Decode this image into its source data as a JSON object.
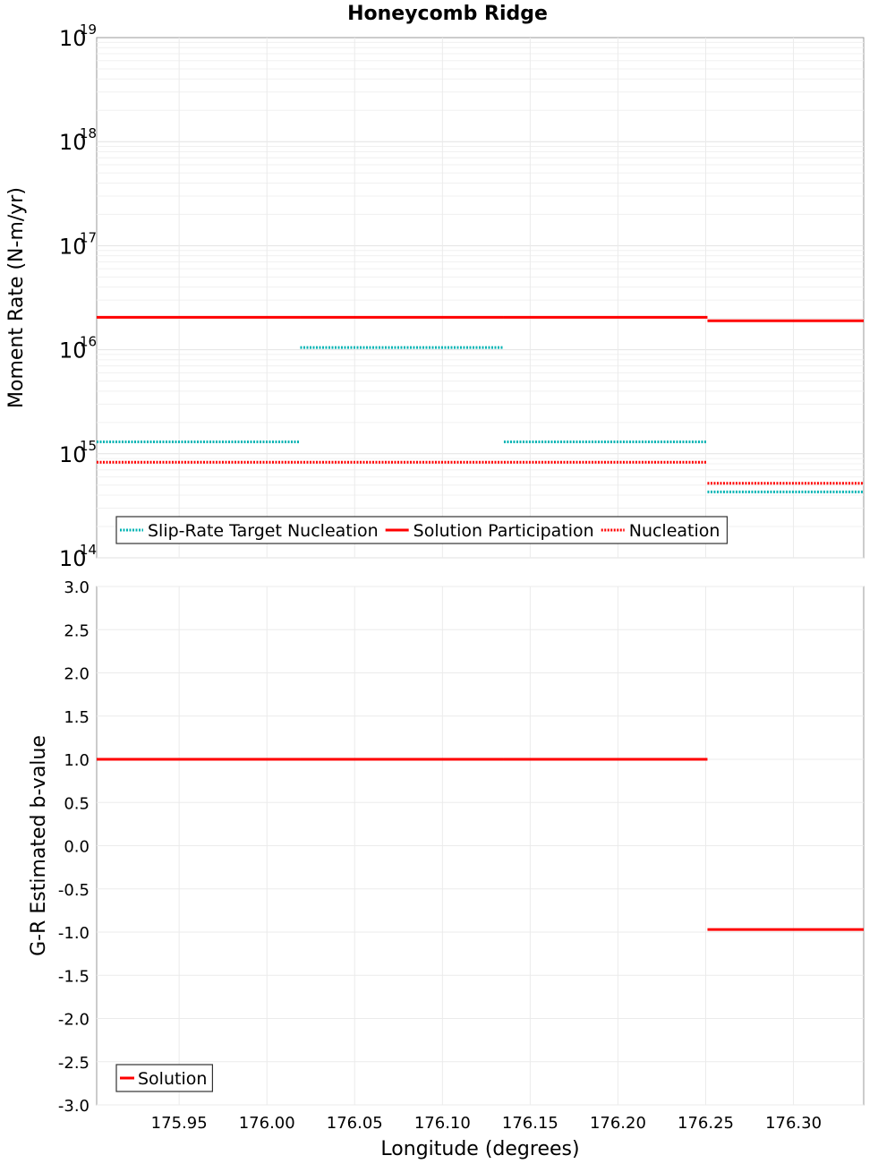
{
  "chart_data": [
    {
      "type": "line",
      "title": "Honeycomb Ridge",
      "xlabel": "Longitude (degrees)",
      "ylabel": "Moment Rate (N-m/yr)",
      "yscale": "log",
      "xlim": [
        175.903,
        176.34
      ],
      "ylim": [
        100000000000000.0,
        1e+19
      ],
      "y_tick_labels": [
        {
          "base": "10",
          "exp": "14"
        },
        {
          "base": "10",
          "exp": "15"
        },
        {
          "base": "10",
          "exp": "16"
        },
        {
          "base": "10",
          "exp": "17"
        },
        {
          "base": "10",
          "exp": "18"
        },
        {
          "base": "10",
          "exp": "19"
        }
      ],
      "grid": true,
      "legend_position": "bottom-left",
      "series": [
        {
          "name": "Slip-Rate Target Nucleation",
          "color": "#00b4b4",
          "style": "dotted",
          "segments": [
            {
              "x": [
                175.903,
                176.019
              ],
              "y": 1300000000000000.0
            },
            {
              "x": [
                176.019,
                176.135
              ],
              "y": 1.05e+16
            },
            {
              "x": [
                176.135,
                176.251
              ],
              "y": 1300000000000000.0
            },
            {
              "x": [
                176.251,
                176.34
              ],
              "y": 430000000000000.0
            }
          ]
        },
        {
          "name": "Solution Participation",
          "color": "#ff0000",
          "style": "solid",
          "segments": [
            {
              "x": [
                175.903,
                176.019
              ],
              "y": 2.05e+16
            },
            {
              "x": [
                176.019,
                176.135
              ],
              "y": 2.05e+16
            },
            {
              "x": [
                176.135,
                176.251
              ],
              "y": 2.05e+16
            },
            {
              "x": [
                176.251,
                176.34
              ],
              "y": 1.9e+16
            }
          ]
        },
        {
          "name": "Nucleation",
          "color": "#ff0000",
          "style": "dotted",
          "segments": [
            {
              "x": [
                175.903,
                176.019
              ],
              "y": 830000000000000.0
            },
            {
              "x": [
                176.019,
                176.135
              ],
              "y": 830000000000000.0
            },
            {
              "x": [
                176.135,
                176.251
              ],
              "y": 830000000000000.0
            },
            {
              "x": [
                176.251,
                176.34
              ],
              "y": 520000000000000.0
            }
          ]
        }
      ]
    },
    {
      "type": "line",
      "xlabel": "Longitude (degrees)",
      "ylabel": "G-R Estimated b-value",
      "xlim": [
        175.903,
        176.34
      ],
      "ylim": [
        -3.0,
        3.0
      ],
      "x_ticks": [
        "175.95",
        "176.00",
        "176.05",
        "176.10",
        "176.15",
        "176.20",
        "176.25",
        "176.30"
      ],
      "y_ticks": [
        "3.0",
        "2.5",
        "2.0",
        "1.5",
        "1.0",
        "0.5",
        "0.0",
        "-0.5",
        "-1.0",
        "-1.5",
        "-2.0",
        "-2.5",
        "-3.0"
      ],
      "grid": true,
      "legend_position": "bottom-left",
      "series": [
        {
          "name": "Solution",
          "color": "#ff0000",
          "style": "solid",
          "segments": [
            {
              "x": [
                175.903,
                176.019
              ],
              "y": 1.0
            },
            {
              "x": [
                176.019,
                176.135
              ],
              "y": 1.0
            },
            {
              "x": [
                176.135,
                176.251
              ],
              "y": 1.0
            },
            {
              "x": [
                176.251,
                176.34
              ],
              "y": -0.97
            }
          ]
        }
      ]
    }
  ]
}
